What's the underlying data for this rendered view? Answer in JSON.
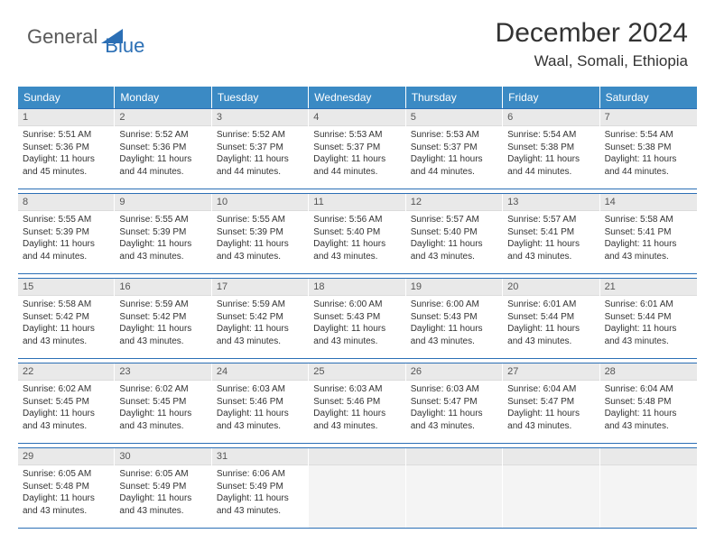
{
  "brand": {
    "part1": "General",
    "part2": "Blue"
  },
  "title": "December 2024",
  "location": "Waal, Somali, Ethiopia",
  "colors": {
    "header_bg": "#3b8ac4",
    "border": "#2b6fb5",
    "daynum_bg": "#e9e9e9",
    "empty_bg": "#f4f4f4",
    "text": "#333333",
    "logo_grey": "#5a5a5a",
    "logo_blue": "#2b6fb5"
  },
  "dow": [
    "Sunday",
    "Monday",
    "Tuesday",
    "Wednesday",
    "Thursday",
    "Friday",
    "Saturday"
  ],
  "days": [
    {
      "n": "1",
      "sr": "5:51 AM",
      "ss": "5:36 PM",
      "dl": "11 hours and 45 minutes."
    },
    {
      "n": "2",
      "sr": "5:52 AM",
      "ss": "5:36 PM",
      "dl": "11 hours and 44 minutes."
    },
    {
      "n": "3",
      "sr": "5:52 AM",
      "ss": "5:37 PM",
      "dl": "11 hours and 44 minutes."
    },
    {
      "n": "4",
      "sr": "5:53 AM",
      "ss": "5:37 PM",
      "dl": "11 hours and 44 minutes."
    },
    {
      "n": "5",
      "sr": "5:53 AM",
      "ss": "5:37 PM",
      "dl": "11 hours and 44 minutes."
    },
    {
      "n": "6",
      "sr": "5:54 AM",
      "ss": "5:38 PM",
      "dl": "11 hours and 44 minutes."
    },
    {
      "n": "7",
      "sr": "5:54 AM",
      "ss": "5:38 PM",
      "dl": "11 hours and 44 minutes."
    },
    {
      "n": "8",
      "sr": "5:55 AM",
      "ss": "5:39 PM",
      "dl": "11 hours and 44 minutes."
    },
    {
      "n": "9",
      "sr": "5:55 AM",
      "ss": "5:39 PM",
      "dl": "11 hours and 43 minutes."
    },
    {
      "n": "10",
      "sr": "5:55 AM",
      "ss": "5:39 PM",
      "dl": "11 hours and 43 minutes."
    },
    {
      "n": "11",
      "sr": "5:56 AM",
      "ss": "5:40 PM",
      "dl": "11 hours and 43 minutes."
    },
    {
      "n": "12",
      "sr": "5:57 AM",
      "ss": "5:40 PM",
      "dl": "11 hours and 43 minutes."
    },
    {
      "n": "13",
      "sr": "5:57 AM",
      "ss": "5:41 PM",
      "dl": "11 hours and 43 minutes."
    },
    {
      "n": "14",
      "sr": "5:58 AM",
      "ss": "5:41 PM",
      "dl": "11 hours and 43 minutes."
    },
    {
      "n": "15",
      "sr": "5:58 AM",
      "ss": "5:42 PM",
      "dl": "11 hours and 43 minutes."
    },
    {
      "n": "16",
      "sr": "5:59 AM",
      "ss": "5:42 PM",
      "dl": "11 hours and 43 minutes."
    },
    {
      "n": "17",
      "sr": "5:59 AM",
      "ss": "5:42 PM",
      "dl": "11 hours and 43 minutes."
    },
    {
      "n": "18",
      "sr": "6:00 AM",
      "ss": "5:43 PM",
      "dl": "11 hours and 43 minutes."
    },
    {
      "n": "19",
      "sr": "6:00 AM",
      "ss": "5:43 PM",
      "dl": "11 hours and 43 minutes."
    },
    {
      "n": "20",
      "sr": "6:01 AM",
      "ss": "5:44 PM",
      "dl": "11 hours and 43 minutes."
    },
    {
      "n": "21",
      "sr": "6:01 AM",
      "ss": "5:44 PM",
      "dl": "11 hours and 43 minutes."
    },
    {
      "n": "22",
      "sr": "6:02 AM",
      "ss": "5:45 PM",
      "dl": "11 hours and 43 minutes."
    },
    {
      "n": "23",
      "sr": "6:02 AM",
      "ss": "5:45 PM",
      "dl": "11 hours and 43 minutes."
    },
    {
      "n": "24",
      "sr": "6:03 AM",
      "ss": "5:46 PM",
      "dl": "11 hours and 43 minutes."
    },
    {
      "n": "25",
      "sr": "6:03 AM",
      "ss": "5:46 PM",
      "dl": "11 hours and 43 minutes."
    },
    {
      "n": "26",
      "sr": "6:03 AM",
      "ss": "5:47 PM",
      "dl": "11 hours and 43 minutes."
    },
    {
      "n": "27",
      "sr": "6:04 AM",
      "ss": "5:47 PM",
      "dl": "11 hours and 43 minutes."
    },
    {
      "n": "28",
      "sr": "6:04 AM",
      "ss": "5:48 PM",
      "dl": "11 hours and 43 minutes."
    },
    {
      "n": "29",
      "sr": "6:05 AM",
      "ss": "5:48 PM",
      "dl": "11 hours and 43 minutes."
    },
    {
      "n": "30",
      "sr": "6:05 AM",
      "ss": "5:49 PM",
      "dl": "11 hours and 43 minutes."
    },
    {
      "n": "31",
      "sr": "6:06 AM",
      "ss": "5:49 PM",
      "dl": "11 hours and 43 minutes."
    }
  ],
  "labels": {
    "sunrise": "Sunrise:",
    "sunset": "Sunset:",
    "daylight": "Daylight:"
  },
  "layout": {
    "columns": 7,
    "rows": 5,
    "trailing_empty": 4
  }
}
